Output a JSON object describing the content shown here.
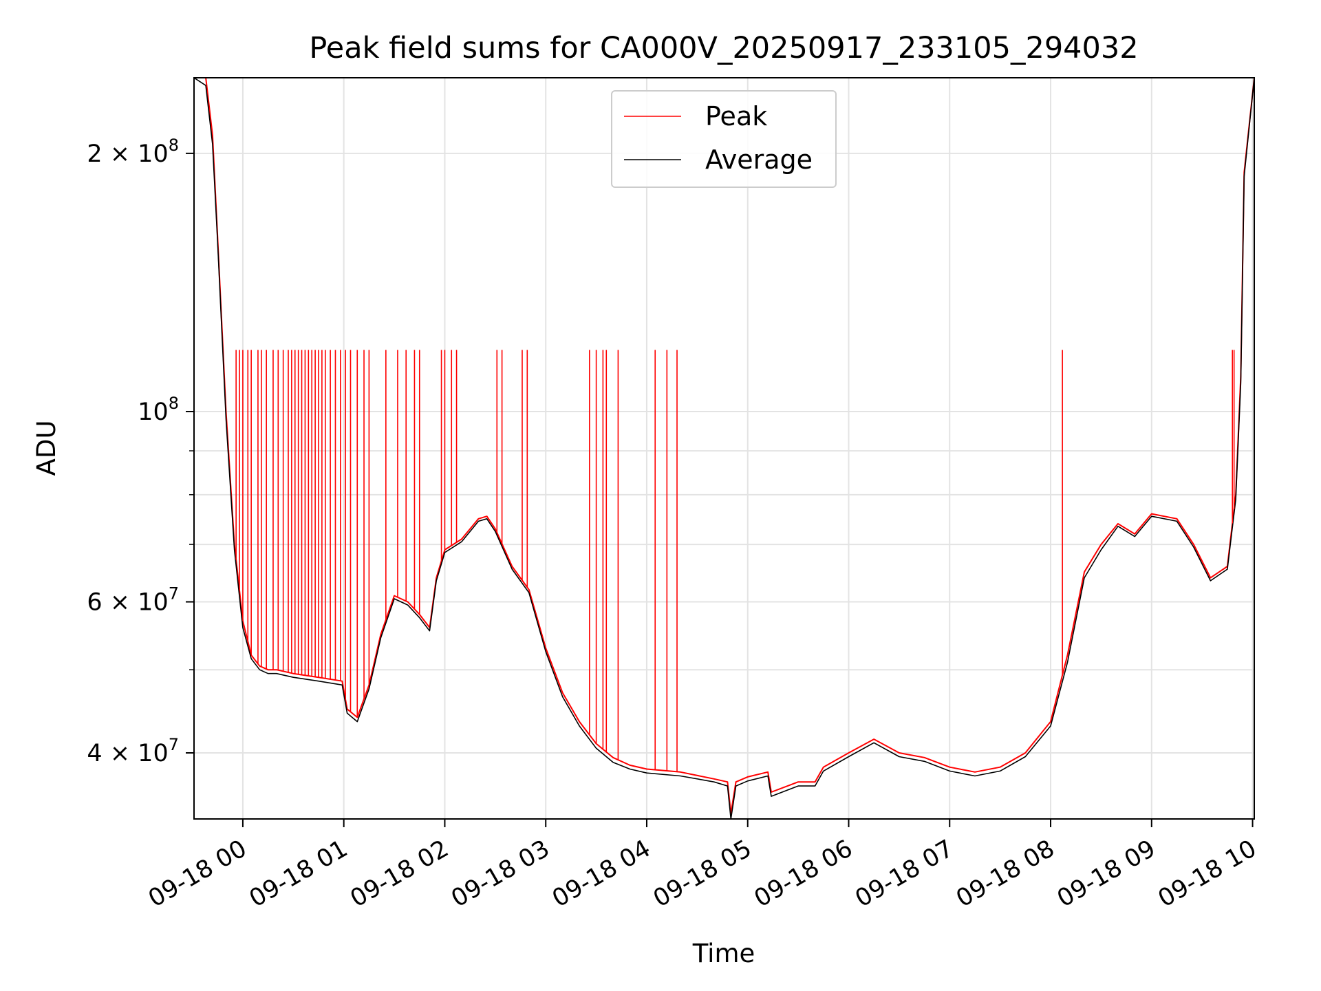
{
  "chart_data": {
    "type": "line",
    "title": "Peak field sums for CA000V_20250917_233105_294032",
    "xlabel": "Time",
    "ylabel": "ADU",
    "y_scale": "log",
    "xlim": [
      "2025-09-17T23:31",
      "2025-09-18T10:01"
    ],
    "ylim": [
      33500000,
      245000000
    ],
    "x_ticks": [
      "09-18 00",
      "09-18 01",
      "09-18 02",
      "09-18 03",
      "09-18 04",
      "09-18 05",
      "09-18 06",
      "09-18 07",
      "09-18 08",
      "09-18 09",
      "09-18 10"
    ],
    "x_tick_values": [
      "2025-09-18T00:00",
      "2025-09-18T01:00",
      "2025-09-18T02:00",
      "2025-09-18T03:00",
      "2025-09-18T04:00",
      "2025-09-18T05:00",
      "2025-09-18T06:00",
      "2025-09-18T07:00",
      "2025-09-18T08:00",
      "2025-09-18T09:00",
      "2025-09-18T10:00"
    ],
    "y_major_ticks": [
      {
        "value": 40000000,
        "mantissa": "4 × 10",
        "exp": "7"
      },
      {
        "value": 60000000,
        "mantissa": "6 × 10",
        "exp": "7"
      },
      {
        "value": 100000000,
        "mantissa": "10",
        "exp": "8"
      },
      {
        "value": 200000000,
        "mantissa": "2 × 10",
        "exp": "8"
      }
    ],
    "y_minor_ticks": [
      50000000,
      70000000,
      80000000,
      90000000
    ],
    "grid": true,
    "legend_position": "top-center",
    "series": [
      {
        "name": "Peak",
        "color": "#ff0000",
        "x": [
          "2025-09-17T23:31",
          "2025-09-17T23:38",
          "2025-09-17T23:42",
          "2025-09-17T23:45",
          "2025-09-17T23:50",
          "2025-09-17T23:55",
          "2025-09-18T00:00",
          "2025-09-18T00:05",
          "2025-09-18T00:10",
          "2025-09-18T00:15",
          "2025-09-18T00:20",
          "2025-09-18T00:30",
          "2025-09-18T00:45",
          "2025-09-18T00:59",
          "2025-09-18T01:02",
          "2025-09-18T01:08",
          "2025-09-18T01:15",
          "2025-09-18T01:22",
          "2025-09-18T01:30",
          "2025-09-18T01:38",
          "2025-09-18T01:45",
          "2025-09-18T01:51",
          "2025-09-18T01:55",
          "2025-09-18T02:00",
          "2025-09-18T02:10",
          "2025-09-18T02:20",
          "2025-09-18T02:25",
          "2025-09-18T02:30",
          "2025-09-18T02:40",
          "2025-09-18T02:50",
          "2025-09-18T03:00",
          "2025-09-18T03:10",
          "2025-09-18T03:20",
          "2025-09-18T03:30",
          "2025-09-18T03:40",
          "2025-09-18T03:50",
          "2025-09-18T04:00",
          "2025-09-18T04:20",
          "2025-09-18T04:40",
          "2025-09-18T04:48",
          "2025-09-18T04:50",
          "2025-09-18T04:53",
          "2025-09-18T05:00",
          "2025-09-18T05:12",
          "2025-09-18T05:14",
          "2025-09-18T05:30",
          "2025-09-18T05:40",
          "2025-09-18T05:45",
          "2025-09-18T06:00",
          "2025-09-18T06:15",
          "2025-09-18T06:30",
          "2025-09-18T06:45",
          "2025-09-18T07:00",
          "2025-09-18T07:15",
          "2025-09-18T07:30",
          "2025-09-18T07:45",
          "2025-09-18T08:00",
          "2025-09-18T08:10",
          "2025-09-18T08:20",
          "2025-09-18T08:30",
          "2025-09-18T08:40",
          "2025-09-18T08:50",
          "2025-09-18T09:00",
          "2025-09-18T09:15",
          "2025-09-18T09:25",
          "2025-09-18T09:35",
          "2025-09-18T09:45",
          "2025-09-18T09:50",
          "2025-09-18T09:53",
          "2025-09-18T09:55",
          "2025-09-18T10:01"
        ],
        "y": [
          245000000,
          245000000,
          210000000,
          160000000,
          100000000,
          70000000,
          57000000,
          52000000,
          50500000,
          50000000,
          50000000,
          49500000,
          49000000,
          48500000,
          45000000,
          44000000,
          48000000,
          55000000,
          61000000,
          60000000,
          58000000,
          56000000,
          64000000,
          69000000,
          71000000,
          75000000,
          75500000,
          73000000,
          66000000,
          62000000,
          53000000,
          47000000,
          43500000,
          41000000,
          39500000,
          38700000,
          38300000,
          38000000,
          37300000,
          37000000,
          34000000,
          37000000,
          37500000,
          38000000,
          36000000,
          37000000,
          37000000,
          38500000,
          40000000,
          41500000,
          40000000,
          39500000,
          38500000,
          38000000,
          38500000,
          40000000,
          43500000,
          52000000,
          65000000,
          70000000,
          74000000,
          72000000,
          76000000,
          75000000,
          70000000,
          64000000,
          66000000,
          80000000,
          110000000,
          190000000,
          245000000
        ]
      },
      {
        "name": "Average",
        "color": "#000000",
        "x": [
          "2025-09-17T23:31",
          "2025-09-17T23:38",
          "2025-09-17T23:42",
          "2025-09-17T23:45",
          "2025-09-17T23:50",
          "2025-09-17T23:55",
          "2025-09-18T00:00",
          "2025-09-18T00:05",
          "2025-09-18T00:10",
          "2025-09-18T00:15",
          "2025-09-18T00:20",
          "2025-09-18T00:30",
          "2025-09-18T00:45",
          "2025-09-18T00:59",
          "2025-09-18T01:02",
          "2025-09-18T01:08",
          "2025-09-18T01:15",
          "2025-09-18T01:22",
          "2025-09-18T01:30",
          "2025-09-18T01:38",
          "2025-09-18T01:45",
          "2025-09-18T01:51",
          "2025-09-18T01:55",
          "2025-09-18T02:00",
          "2025-09-18T02:10",
          "2025-09-18T02:20",
          "2025-09-18T02:25",
          "2025-09-18T02:30",
          "2025-09-18T02:40",
          "2025-09-18T02:50",
          "2025-09-18T03:00",
          "2025-09-18T03:10",
          "2025-09-18T03:20",
          "2025-09-18T03:30",
          "2025-09-18T03:40",
          "2025-09-18T03:50",
          "2025-09-18T04:00",
          "2025-09-18T04:20",
          "2025-09-18T04:40",
          "2025-09-18T04:48",
          "2025-09-18T04:50",
          "2025-09-18T04:53",
          "2025-09-18T05:00",
          "2025-09-18T05:12",
          "2025-09-18T05:14",
          "2025-09-18T05:30",
          "2025-09-18T05:40",
          "2025-09-18T05:45",
          "2025-09-18T06:00",
          "2025-09-18T06:15",
          "2025-09-18T06:30",
          "2025-09-18T06:45",
          "2025-09-18T07:00",
          "2025-09-18T07:15",
          "2025-09-18T07:30",
          "2025-09-18T07:45",
          "2025-09-18T08:00",
          "2025-09-18T08:10",
          "2025-09-18T08:20",
          "2025-09-18T08:30",
          "2025-09-18T08:40",
          "2025-09-18T08:50",
          "2025-09-18T09:00",
          "2025-09-18T09:15",
          "2025-09-18T09:25",
          "2025-09-18T09:35",
          "2025-09-18T09:45",
          "2025-09-18T09:50",
          "2025-09-18T09:53",
          "2025-09-18T09:55",
          "2025-09-18T10:01"
        ],
        "y": [
          245000000,
          240000000,
          205000000,
          158000000,
          98000000,
          69000000,
          56000000,
          51500000,
          50000000,
          49500000,
          49500000,
          49000000,
          48500000,
          48000000,
          44500000,
          43500000,
          47500000,
          54500000,
          60500000,
          59500000,
          57500000,
          55500000,
          63500000,
          68500000,
          70500000,
          74500000,
          75000000,
          72500000,
          65500000,
          61500000,
          52500000,
          46500000,
          43000000,
          40500000,
          39000000,
          38300000,
          37900000,
          37600000,
          37000000,
          36600000,
          33500000,
          36600000,
          37100000,
          37600000,
          35600000,
          36600000,
          36600000,
          38100000,
          39600000,
          41100000,
          39600000,
          39100000,
          38100000,
          37600000,
          38100000,
          39600000,
          43000000,
          51000000,
          64000000,
          69000000,
          73500000,
          71500000,
          75500000,
          74500000,
          69500000,
          63500000,
          65500000,
          79000000,
          108000000,
          188000000,
          245000000
        ]
      }
    ],
    "spikes": {
      "series": "Peak",
      "top_value": 118000000,
      "times": [
        "2025-09-17T23:56",
        "2025-09-17T23:58",
        "2025-09-18T00:00",
        "2025-09-18T00:03",
        "2025-09-18T00:05",
        "2025-09-18T00:09",
        "2025-09-18T00:11",
        "2025-09-18T00:14",
        "2025-09-18T00:18",
        "2025-09-18T00:21",
        "2025-09-18T00:24",
        "2025-09-18T00:27",
        "2025-09-18T00:29",
        "2025-09-18T00:31",
        "2025-09-18T00:33",
        "2025-09-18T00:35",
        "2025-09-18T00:37",
        "2025-09-18T00:39",
        "2025-09-18T00:41",
        "2025-09-18T00:43",
        "2025-09-18T00:45",
        "2025-09-18T00:47",
        "2025-09-18T00:49",
        "2025-09-18T00:52",
        "2025-09-18T00:55",
        "2025-09-18T00:58",
        "2025-09-18T01:01",
        "2025-09-18T01:04",
        "2025-09-18T01:08",
        "2025-09-18T01:12",
        "2025-09-18T01:15",
        "2025-09-18T01:25",
        "2025-09-18T01:32",
        "2025-09-18T01:37",
        "2025-09-18T01:42",
        "2025-09-18T01:45",
        "2025-09-18T01:58",
        "2025-09-18T02:00",
        "2025-09-18T02:04",
        "2025-09-18T02:07",
        "2025-09-18T02:31",
        "2025-09-18T02:34",
        "2025-09-18T02:46",
        "2025-09-18T02:49",
        "2025-09-18T03:26",
        "2025-09-18T03:30",
        "2025-09-18T03:34",
        "2025-09-18T03:36",
        "2025-09-18T03:43",
        "2025-09-18T04:05",
        "2025-09-18T04:12",
        "2025-09-18T04:18",
        "2025-09-18T08:07",
        "2025-09-18T09:48",
        "2025-09-18T09:49"
      ]
    }
  }
}
